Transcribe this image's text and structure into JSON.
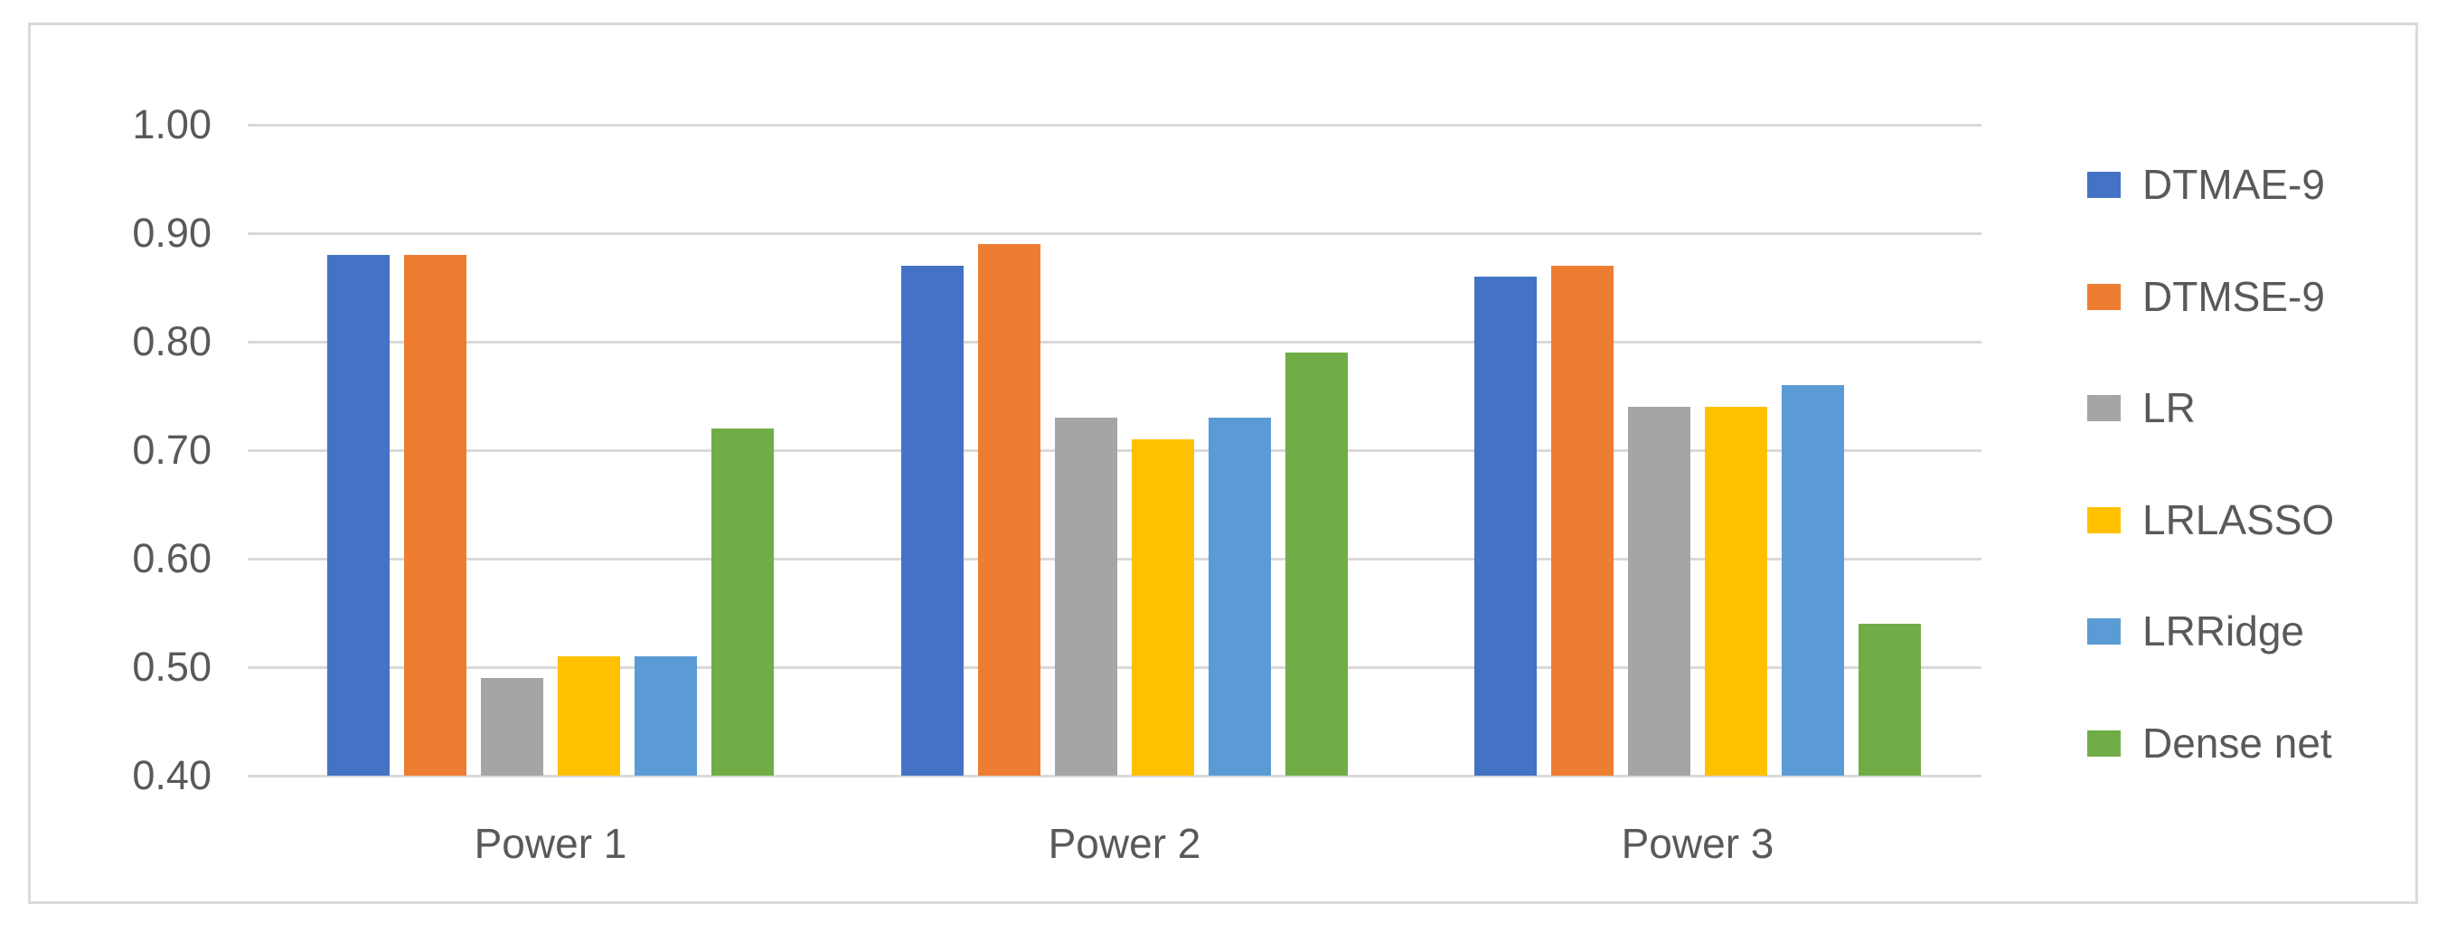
{
  "chart_data": {
    "type": "bar",
    "title": "",
    "categories": [
      "Power 1",
      "Power 2",
      "Power 3"
    ],
    "series": [
      {
        "name": "DTMAE-9",
        "color": "#4472C4",
        "values": [
          0.88,
          0.87,
          0.86
        ]
      },
      {
        "name": "DTMSE-9",
        "color": "#ED7D31",
        "values": [
          0.88,
          0.89,
          0.87
        ]
      },
      {
        "name": "LR",
        "color": "#A5A5A5",
        "values": [
          0.49,
          0.73,
          0.74
        ]
      },
      {
        "name": "LRLASSO",
        "color": "#FFC000",
        "values": [
          0.51,
          0.71,
          0.74
        ]
      },
      {
        "name": "LRRidge",
        "color": "#5B9BD5",
        "values": [
          0.51,
          0.73,
          0.76
        ]
      },
      {
        "name": "Dense net",
        "color": "#70AD47",
        "values": [
          0.72,
          0.79,
          0.54
        ]
      }
    ],
    "ylim": [
      0.4,
      1.0
    ],
    "ytick_step": 0.1,
    "ytick_labels": [
      "1.00",
      "0.90",
      "0.80",
      "0.70",
      "0.60",
      "0.50",
      "0.40"
    ],
    "xlabel": "",
    "ylabel": "",
    "grid": true,
    "legend_position": "right"
  },
  "style": {
    "grid_color": "#D9D9D9",
    "frame_border_color": "#D9D9D9",
    "text_color": "#595959",
    "background": "#FFFFFF"
  }
}
